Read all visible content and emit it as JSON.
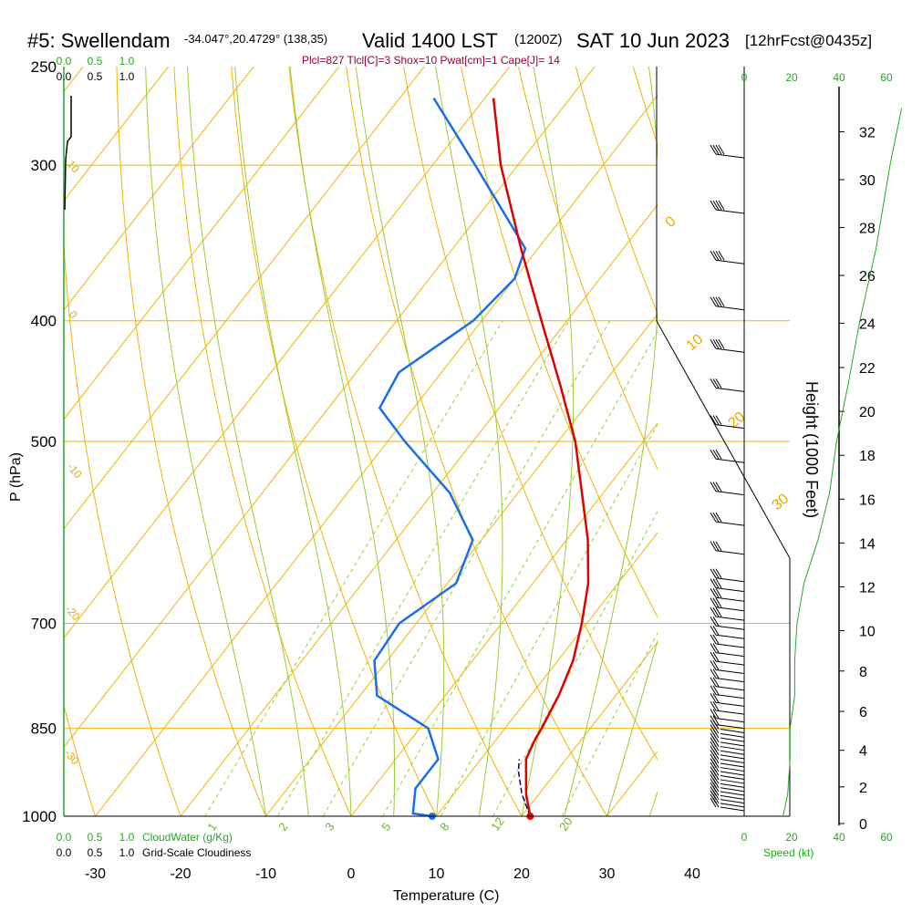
{
  "header": {
    "station": "#5: Swellendam",
    "location": "-34.047°,20.4729° (138,35)",
    "valid": "Valid 1400 LST",
    "zulu": "(1200Z)",
    "date": "SAT 10 Jun 2023",
    "forecast": "[12hrFcst@0435z]",
    "indices": "Plcl=827 Tlcl[C]=3 Shox=10 Pwat[cm]=1 Cape[J]= 14"
  },
  "colors": {
    "isotherm": "#f0b400",
    "dry_adiabat": "#f0b400",
    "moist_adiabat": "#99cc33",
    "mixing_ratio": "#99cc33",
    "temperature": "#e00000",
    "dewpoint": "#1a6fe8",
    "parcel": "#000088",
    "cloud_axis": "#22aa22"
  },
  "chart_data": {
    "type": "line",
    "title": "#5: Swellendam  Valid 1400 LST (1200Z) SAT 10 Jun 2023",
    "xlabel": "Temperature (C)",
    "ylabel": "P (hPa)",
    "right_label": "Height (1000 Feet)",
    "xlim": [
      -34,
      36
    ],
    "ylim_hPa": [
      1000,
      250
    ],
    "x_ticks": [
      -30,
      -20,
      -10,
      0,
      10,
      20,
      30,
      40
    ],
    "p_ticks": [
      250,
      300,
      400,
      500,
      700,
      850,
      1000
    ],
    "height_ticks": [
      0,
      2,
      4,
      6,
      8,
      10,
      12,
      14,
      16,
      18,
      20,
      22,
      24,
      26,
      28,
      30,
      32
    ],
    "isobar_lines_hPa": [
      300,
      400,
      500,
      700,
      850,
      1000
    ],
    "dry_adiabat_labels": [
      "0",
      "10",
      "20",
      "30"
    ],
    "mixing_ratio_labels": [
      "1",
      "2",
      "3",
      "5",
      "8",
      "12",
      "20"
    ],
    "left_adiabat_labels": [
      "10",
      "0",
      "-10",
      "-20",
      "-30"
    ],
    "cloud_ticks": [
      "0.0",
      "0.5",
      "1.0"
    ],
    "cloud_water_label": "CloudWater (g/Kg)",
    "cloudiness_label": "Grid-Scale Cloudiness",
    "speed_ticks": [
      "0",
      "20",
      "40",
      "60"
    ],
    "speed_label": "Speed (kt)",
    "series": [
      {
        "name": "Temperature",
        "points": [
          {
            "p": 1000,
            "t": 21.0
          },
          {
            "p": 960,
            "t": 18.5
          },
          {
            "p": 900,
            "t": 15.3
          },
          {
            "p": 870,
            "t": 14.6
          },
          {
            "p": 850,
            "t": 14.3
          },
          {
            "p": 800,
            "t": 13.3
          },
          {
            "p": 750,
            "t": 11.8
          },
          {
            "p": 700,
            "t": 9.4
          },
          {
            "p": 650,
            "t": 6.5
          },
          {
            "p": 600,
            "t": 2.5
          },
          {
            "p": 550,
            "t": -2.5
          },
          {
            "p": 500,
            "t": -8.0
          },
          {
            "p": 450,
            "t": -15.0
          },
          {
            "p": 400,
            "t": -23.0
          },
          {
            "p": 350,
            "t": -32.0
          },
          {
            "p": 300,
            "t": -42.0
          },
          {
            "p": 265,
            "t": -49.0
          }
        ]
      },
      {
        "name": "Dewpoint",
        "points": [
          {
            "p": 1000,
            "t": 9.5
          },
          {
            "p": 995,
            "t": 7.0
          },
          {
            "p": 950,
            "t": 5.0
          },
          {
            "p": 900,
            "t": 5.0
          },
          {
            "p": 850,
            "t": 1.0
          },
          {
            "p": 800,
            "t": -8.0
          },
          {
            "p": 750,
            "t": -11.5
          },
          {
            "p": 700,
            "t": -12.0
          },
          {
            "p": 650,
            "t": -9.0
          },
          {
            "p": 600,
            "t": -11.0
          },
          {
            "p": 550,
            "t": -18.0
          },
          {
            "p": 500,
            "t": -28.0
          },
          {
            "p": 470,
            "t": -34.0
          },
          {
            "p": 440,
            "t": -35.0
          },
          {
            "p": 400,
            "t": -31.0
          },
          {
            "p": 370,
            "t": -30.0
          },
          {
            "p": 350,
            "t": -31.5
          },
          {
            "p": 300,
            "t": -45.0
          },
          {
            "p": 265,
            "t": -56.0
          }
        ]
      },
      {
        "name": "Parcel",
        "points": [
          {
            "p": 1000,
            "t": 21.0
          },
          {
            "p": 960,
            "t": 18.0
          },
          {
            "p": 920,
            "t": 15.5
          },
          {
            "p": 900,
            "t": 14.5
          }
        ]
      }
    ],
    "surface_points": {
      "temperature": 21.0,
      "dewpoint": 9.5
    },
    "height_profile": [
      {
        "p": 1000,
        "km": 0.0
      },
      {
        "p": 850,
        "km": 4.8
      },
      {
        "p": 700,
        "km": 10.0
      },
      {
        "p": 500,
        "km": 18.3
      },
      {
        "p": 400,
        "km": 23.8
      },
      {
        "p": 300,
        "km": 30.3
      }
    ],
    "wind_speed_kt": [
      {
        "p": 1000,
        "kt": 12
      },
      {
        "p": 960,
        "kt": 14
      },
      {
        "p": 900,
        "kt": 15
      },
      {
        "p": 850,
        "kt": 15
      },
      {
        "p": 800,
        "kt": 17
      },
      {
        "p": 750,
        "kt": 17
      },
      {
        "p": 700,
        "kt": 18
      },
      {
        "p": 650,
        "kt": 21
      },
      {
        "p": 600,
        "kt": 27
      },
      {
        "p": 550,
        "kt": 32
      },
      {
        "p": 500,
        "kt": 35
      },
      {
        "p": 450,
        "kt": 40
      },
      {
        "p": 400,
        "kt": 45
      },
      {
        "p": 350,
        "kt": 52
      },
      {
        "p": 300,
        "kt": 58
      },
      {
        "p": 270,
        "kt": 63
      }
    ]
  }
}
